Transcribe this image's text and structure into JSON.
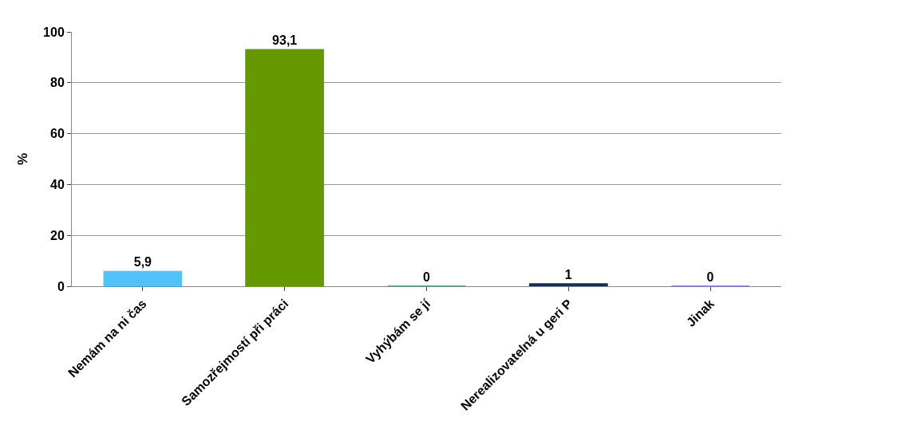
{
  "chart_data": {
    "type": "bar",
    "ylabel": "%",
    "categories": [
      "Nemám na ni čas",
      "Samozřejmostí při práci",
      "Vyhýbám se jí",
      "Nerealizovatelná u geri P",
      "Jinak"
    ],
    "values": [
      5.9,
      93.1,
      0,
      1,
      0
    ],
    "value_labels": [
      "5,9",
      "93,1",
      "0",
      "1",
      "0"
    ],
    "colors": [
      "#4fc3f7",
      "#669900",
      "#2a7a55",
      "#14304f",
      "#7b4fcf"
    ],
    "ylim": [
      0,
      100
    ],
    "yticks": [
      0,
      20,
      40,
      60,
      80,
      100
    ],
    "grid": "y"
  }
}
